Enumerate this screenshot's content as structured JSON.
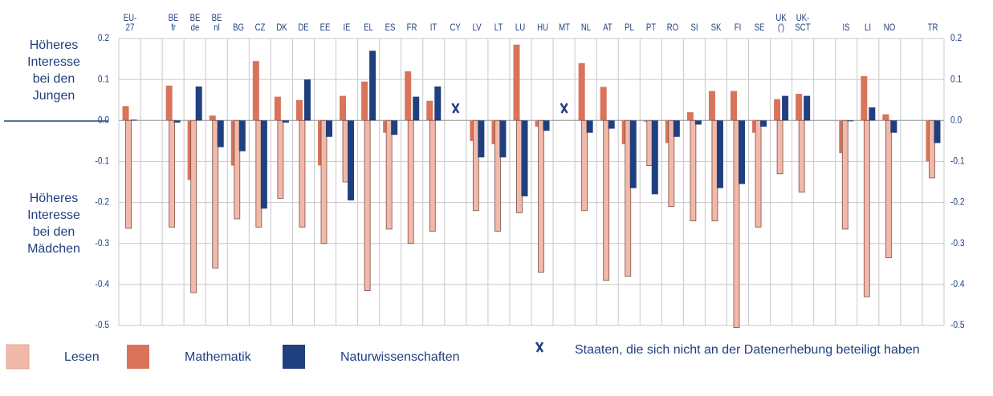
{
  "chart_data": {
    "type": "bar",
    "categories": [
      "EU-\n27",
      null,
      "BE\nfr",
      "BE\nde",
      "BE\nnl",
      "BG",
      "CZ",
      "DK",
      "DE",
      "EE",
      "IE",
      "EL",
      "ES",
      "FR",
      "IT",
      "CY",
      "LV",
      "LT",
      "LU",
      "HU",
      "MT",
      "NL",
      "AT",
      "PL",
      "PT",
      "RO",
      "SI",
      "SK",
      "FI",
      "SE",
      "UK\n(')",
      "UK-\nSCT",
      null,
      "IS",
      "LI",
      "NO",
      null,
      "TR"
    ],
    "series": [
      {
        "name": "Lesen",
        "color": "#f2b9a9",
        "values": [
          -0.263,
          null,
          -0.26,
          -0.42,
          -0.36,
          -0.24,
          -0.26,
          -0.19,
          -0.26,
          -0.3,
          -0.15,
          -0.415,
          -0.265,
          -0.3,
          -0.27,
          null,
          -0.22,
          -0.27,
          -0.225,
          -0.37,
          null,
          -0.22,
          -0.39,
          -0.38,
          -0.11,
          -0.21,
          -0.245,
          -0.245,
          -0.505,
          -0.26,
          -0.13,
          -0.175,
          null,
          -0.265,
          -0.43,
          -0.335,
          null,
          -0.14
        ]
      },
      {
        "name": "Mathematik",
        "color": "#d9735a",
        "values": [
          0.035,
          null,
          0.085,
          -0.145,
          0.012,
          -0.11,
          0.145,
          0.058,
          0.05,
          -0.11,
          0.06,
          0.095,
          -0.03,
          0.12,
          0.048,
          null,
          -0.05,
          -0.058,
          0.185,
          -0.015,
          null,
          0.14,
          0.082,
          -0.058,
          -0.003,
          -0.055,
          0.02,
          0.072,
          0.072,
          -0.03,
          0.052,
          0.065,
          null,
          -0.08,
          0.108,
          0.015,
          null,
          -0.1
        ]
      },
      {
        "name": "Naturwissenschaften",
        "color": "#1f3f7f",
        "values": [
          0.002,
          null,
          -0.005,
          0.083,
          -0.065,
          -0.075,
          -0.215,
          -0.005,
          0.1,
          -0.04,
          -0.195,
          0.17,
          -0.035,
          0.058,
          0.083,
          null,
          -0.09,
          -0.09,
          -0.185,
          -0.025,
          null,
          -0.03,
          -0.02,
          -0.165,
          -0.18,
          -0.04,
          -0.01,
          -0.165,
          -0.155,
          -0.015,
          0.06,
          0.06,
          null,
          -0.002,
          0.032,
          -0.03,
          null,
          -0.055
        ]
      }
    ],
    "ylim": [
      -0.5,
      0.2
    ],
    "yticks": [
      0.2,
      0.1,
      {
        "value": 0,
        "label": "0.0"
      },
      -0.1,
      -0.2,
      -0.3,
      -0.4,
      -0.5
    ],
    "grid": true,
    "annotations": [
      "Höheres\nInteresse\nbei den\nJungen",
      "Höheres\nInteresse\nbei den\nMädchen"
    ],
    "note": "Staaten, die sich nicht an der Datenerhebung beteiligt haben"
  }
}
